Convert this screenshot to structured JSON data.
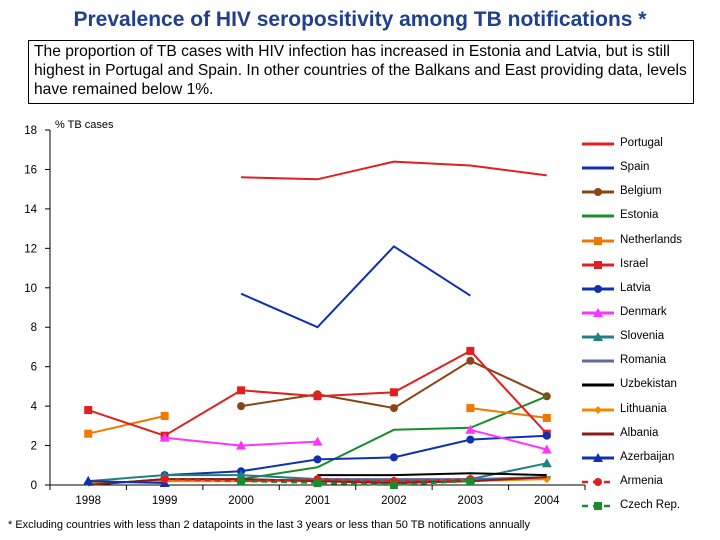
{
  "title": "Prevalence of HIV seropositivity among TB notifications",
  "title_star": "*",
  "summary": "The proportion of TB cases with HIV infection has increased in Estonia and Latvia, but is still highest in Portugal and Spain.  In other countries of the Balkans and East providing data, levels have remained below 1%.",
  "footnote": "* Excluding countries with less than 2 datapoints in the last 3 years or less than 50 TB notifications annually",
  "chart_data": {
    "type": "line",
    "title": "",
    "ylabel": "% TB cases",
    "xlabel": "",
    "ylim": [
      0,
      18
    ],
    "yticks": [
      0,
      2,
      4,
      6,
      8,
      10,
      12,
      14,
      16,
      18
    ],
    "categories": [
      "1998",
      "1999",
      "2000",
      "2001",
      "2002",
      "2003",
      "2004"
    ],
    "series": [
      {
        "name": "Portugal",
        "color": "#e02020",
        "marker": "none",
        "dashed": false,
        "values": [
          null,
          null,
          15.6,
          15.5,
          16.4,
          16.2,
          15.7
        ]
      },
      {
        "name": "Spain",
        "color": "#1030b0",
        "marker": "none",
        "dashed": false,
        "values": [
          null,
          null,
          9.7,
          8.0,
          12.1,
          9.6,
          null
        ]
      },
      {
        "name": "Belgium",
        "color": "#8b4513",
        "marker": "circle",
        "dashed": false,
        "values": [
          null,
          null,
          4.0,
          4.6,
          3.9,
          6.3,
          4.5
        ]
      },
      {
        "name": "Estonia",
        "color": "#1a8c2a",
        "marker": "none",
        "dashed": false,
        "values": [
          0.0,
          0.3,
          0.3,
          0.9,
          2.8,
          2.9,
          4.5
        ]
      },
      {
        "name": "Netherlands",
        "color": "#f07800",
        "marker": "square",
        "dashed": false,
        "values": [
          2.6,
          3.5,
          null,
          null,
          null,
          3.9,
          3.4
        ]
      },
      {
        "name": "Israel",
        "color": "#e02020",
        "marker": "square",
        "dashed": false,
        "values": [
          3.8,
          2.5,
          4.8,
          4.5,
          4.7,
          6.8,
          2.6
        ]
      },
      {
        "name": "Latvia",
        "color": "#1030b0",
        "marker": "circle",
        "dashed": false,
        "values": [
          null,
          0.5,
          0.7,
          1.3,
          1.4,
          2.3,
          2.5
        ]
      },
      {
        "name": "Denmark",
        "color": "#ff33ff",
        "marker": "triangle",
        "dashed": false,
        "values": [
          null,
          2.4,
          2.0,
          2.2,
          null,
          2.8,
          1.8
        ]
      },
      {
        "name": "Slovenia",
        "color": "#208080",
        "marker": "triangle",
        "dashed": false,
        "values": [
          0.2,
          0.5,
          0.5,
          0.3,
          0.2,
          0.3,
          1.1
        ]
      },
      {
        "name": "Romania",
        "color": "#5a6aa0",
        "marker": "dash",
        "dashed": false,
        "values": [
          0.1,
          0.2,
          0.2,
          0.3,
          0.3,
          0.3,
          0.4
        ]
      },
      {
        "name": "Uzbekistan",
        "color": "#000000",
        "marker": "none",
        "dashed": false,
        "values": [
          null,
          null,
          null,
          0.5,
          0.5,
          0.6,
          0.5
        ]
      },
      {
        "name": "Lithuania",
        "color": "#f08a00",
        "marker": "diamond",
        "dashed": false,
        "values": [
          0.1,
          0.2,
          0.2,
          0.2,
          0.1,
          0.2,
          0.3
        ]
      },
      {
        "name": "Albania",
        "color": "#8b1a1a",
        "marker": "none",
        "dashed": false,
        "values": [
          0.0,
          0.3,
          0.3,
          0.2,
          0.1,
          0.2,
          0.4
        ]
      },
      {
        "name": "Azerbaijan",
        "color": "#1030b0",
        "marker": "triangle",
        "dashed": false,
        "values": [
          0.2,
          0.1,
          null,
          null,
          null,
          null,
          null
        ]
      },
      {
        "name": "Armenia",
        "color": "#e02020",
        "marker": "circle",
        "dashed": true,
        "values": [
          null,
          0.3,
          0.2,
          0.3,
          0.2,
          0.3,
          null
        ]
      },
      {
        "name": "Czech Rep.",
        "color": "#1a8c2a",
        "marker": "square",
        "dashed": true,
        "values": [
          null,
          null,
          0.2,
          0.1,
          0.0,
          0.2,
          null
        ]
      }
    ]
  }
}
